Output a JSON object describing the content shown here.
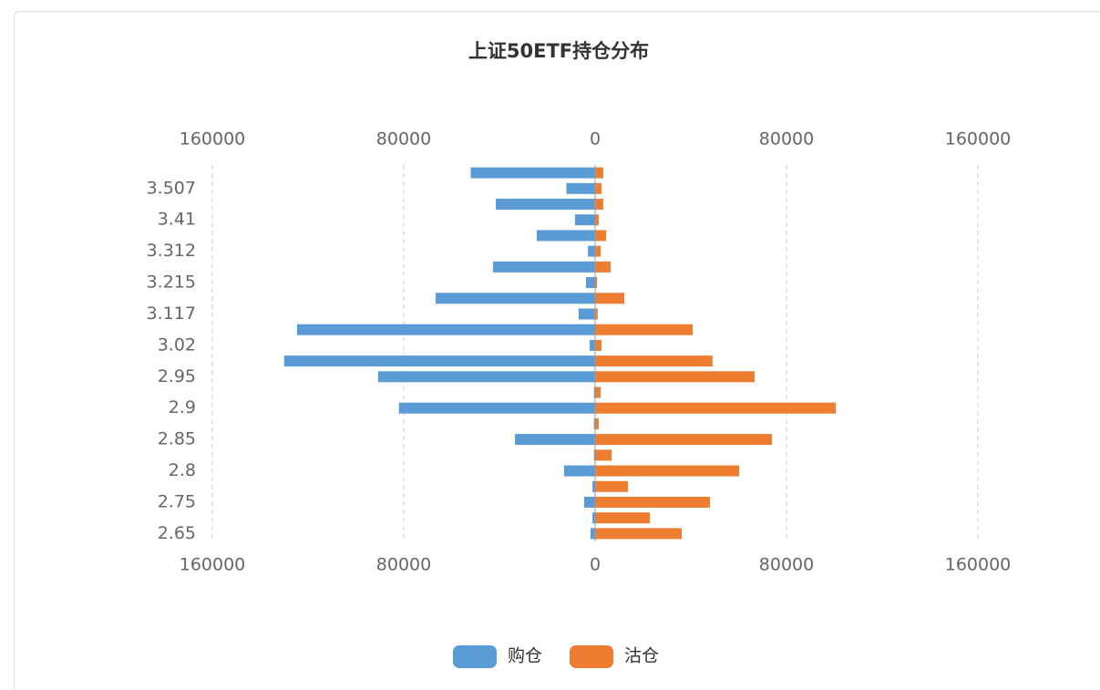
{
  "chart_data": {
    "type": "butterfly-bar",
    "title": "上证50ETF持仓分布",
    "categories": [
      null,
      "3.507",
      null,
      "3.41",
      null,
      "3.312",
      null,
      "3.215",
      null,
      "3.117",
      null,
      "3.02",
      null,
      "2.95",
      null,
      "2.9",
      null,
      "2.85",
      null,
      "2.8",
      null,
      "2.75",
      null,
      "2.65"
    ],
    "series": [
      {
        "name": "购仓",
        "color": "#5b9bd5",
        "values": [
          -52000,
          -12000,
          -41500,
          -8400,
          -24400,
          -3000,
          -42700,
          -3800,
          -66700,
          -6900,
          -124600,
          -2300,
          -130000,
          -90700,
          -500,
          -82000,
          -500,
          -33500,
          -500,
          -13000,
          -1100,
          -4600,
          -1100,
          -1900
        ]
      },
      {
        "name": "沽仓",
        "color": "#ed7d31",
        "values": [
          3400,
          2700,
          3400,
          1500,
          4600,
          2300,
          6500,
          800,
          12200,
          1100,
          40800,
          2700,
          49100,
          66700,
          2300,
          100600,
          1500,
          73900,
          6900,
          60200,
          13700,
          48000,
          22900,
          36200
        ]
      }
    ],
    "xlim": [
      -160000,
      160000
    ],
    "xticks": [
      {
        "value": -160000,
        "label": "160000"
      },
      {
        "value": -80000,
        "label": "80000"
      },
      0,
      80000,
      160000
    ],
    "grid": true
  }
}
